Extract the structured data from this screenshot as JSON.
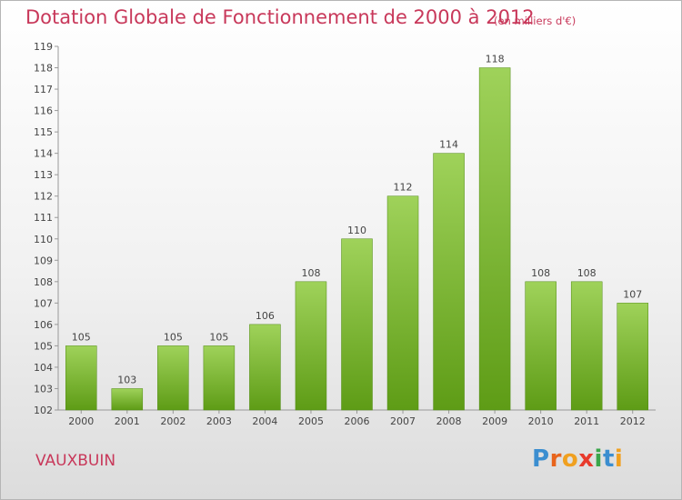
{
  "header": {
    "title": "Dotation Globale de Fonctionnement de 2000 à 2012",
    "unit": "(en milliers d'€)"
  },
  "commune": "VAUXBUIN",
  "brand": {
    "letters": [
      "P",
      "r",
      "o",
      "x",
      "i",
      "t",
      "i"
    ],
    "colors": [
      "#3b8ed0",
      "#e8641c",
      "#f0a020",
      "#e83a2c",
      "#3aa64a",
      "#3b8ed0",
      "#f0a020"
    ]
  },
  "chart_data": {
    "type": "bar",
    "title": "Dotation Globale de Fonctionnement de 2000 à 2012",
    "subtitle": "(en milliers d'€)",
    "categories": [
      "2000",
      "2001",
      "2002",
      "2003",
      "2004",
      "2005",
      "2006",
      "2007",
      "2008",
      "2009",
      "2010",
      "2011",
      "2012"
    ],
    "values": [
      105,
      103,
      105,
      105,
      106,
      108,
      110,
      112,
      114,
      118,
      108,
      108,
      107
    ],
    "ylim": [
      102,
      119
    ],
    "yticks": [
      102,
      103,
      104,
      105,
      106,
      107,
      108,
      109,
      110,
      111,
      112,
      113,
      114,
      115,
      116,
      117,
      118,
      119
    ],
    "grid": false,
    "bar_color_top": "#9fd25a",
    "bar_color_bottom": "#5e9c16"
  }
}
